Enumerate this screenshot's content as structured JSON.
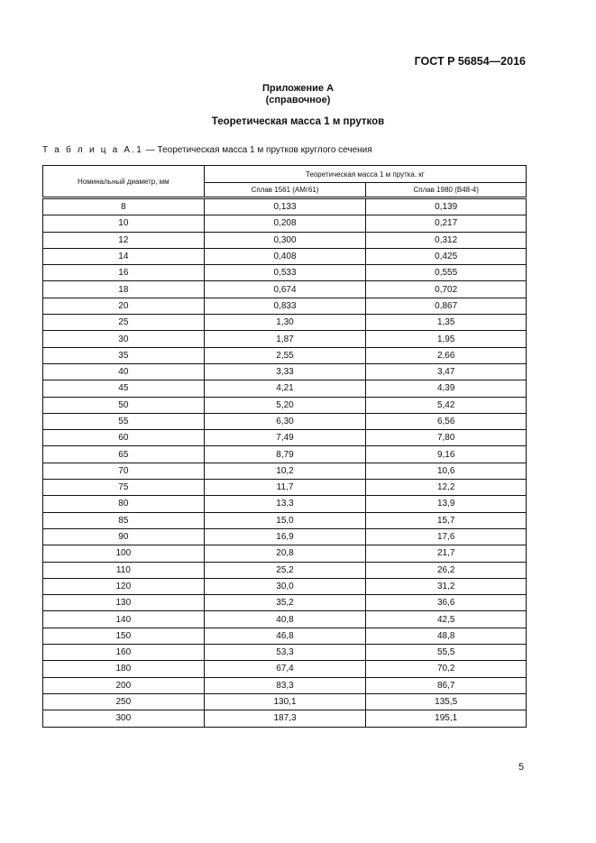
{
  "header": {
    "doc_code": "ГОСТ Р 56854—2016"
  },
  "annex": {
    "label": "Приложение А",
    "type": "(справочное)"
  },
  "section_title": "Теоретическая масса 1 м прутков",
  "table": {
    "caption_label": "Т а б л и ц а А.1",
    "caption_text": " — Теоретическая масса 1 м прутков круглого сечения",
    "col_diameter": "Номинальный диаметр, мм",
    "col_group": "Теоретическая масса 1 м прутка. кг",
    "col_alloy1": "Сплав 1561 (АМг61)",
    "col_alloy2": "Сплав 1980 (В48-4)",
    "rows": [
      [
        "8",
        "0,133",
        "0,139"
      ],
      [
        "10",
        "0,208",
        "0,217"
      ],
      [
        "12",
        "0,300",
        "0,312"
      ],
      [
        "14",
        "0,408",
        "0,425"
      ],
      [
        "16",
        "0,533",
        "0,555"
      ],
      [
        "18",
        "0,674",
        "0,702"
      ],
      [
        "20",
        "0,833",
        "0,867"
      ],
      [
        "25",
        "1,30",
        "1,35"
      ],
      [
        "30",
        "1,87",
        "1,95"
      ],
      [
        "35",
        "2,55",
        "2,66"
      ],
      [
        "40",
        "3,33",
        "3,47"
      ],
      [
        "45",
        "4,21",
        "4,39"
      ],
      [
        "50",
        "5,20",
        "5,42"
      ],
      [
        "55",
        "6,30",
        "6,56"
      ],
      [
        "60",
        "7,49",
        "7,80"
      ],
      [
        "65",
        "8,79",
        "9,16"
      ],
      [
        "70",
        "10,2",
        "10,6"
      ],
      [
        "75",
        "11,7",
        "12,2"
      ],
      [
        "80",
        "13,3",
        "13,9"
      ],
      [
        "85",
        "15,0",
        "15,7"
      ],
      [
        "90",
        "16,9",
        "17,6"
      ],
      [
        "100",
        "20,8",
        "21,7"
      ],
      [
        "110",
        "25,2",
        "26,2"
      ],
      [
        "120",
        "30,0",
        "31,2"
      ],
      [
        "130",
        "35,2",
        "36,6"
      ],
      [
        "140",
        "40,8",
        "42,5"
      ],
      [
        "150",
        "46,8",
        "48,8"
      ],
      [
        "160",
        "53,3",
        "55,5"
      ],
      [
        "180",
        "67,4",
        "70,2"
      ],
      [
        "200",
        "83,3",
        "86,7"
      ],
      [
        "250",
        "130,1",
        "135,5"
      ],
      [
        "300",
        "187,3",
        "195,1"
      ]
    ]
  },
  "footer": {
    "page_number": "5"
  }
}
